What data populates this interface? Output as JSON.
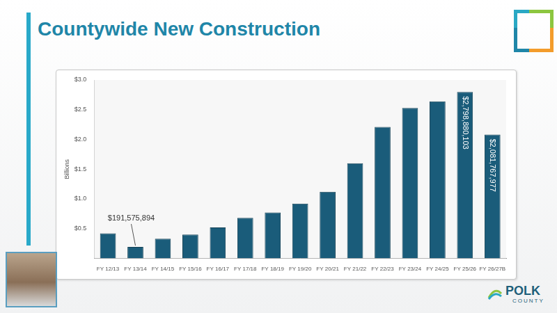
{
  "chart_data": {
    "type": "bar",
    "title": "Countywide New Construction",
    "y_label": "Billions",
    "categories": [
      "FY 12/13",
      "FY 13/14",
      "FY 14/15",
      "FY 15/16",
      "FY 16/17",
      "FY 17/18",
      "FY 18/19",
      "FY 19/20",
      "FY 20/21",
      "FY 21/22",
      "FY 22/23",
      "FY 23/24",
      "FY 24/25",
      "FY 25/26",
      "FY 26/27B"
    ],
    "values": [
      0.42,
      0.191575894,
      0.33,
      0.4,
      0.52,
      0.68,
      0.77,
      0.92,
      1.12,
      1.6,
      2.21,
      2.53,
      2.64,
      2.798880103,
      2.081767977
    ],
    "value_labels": [
      null,
      "$191,575,894",
      null,
      null,
      null,
      null,
      null,
      null,
      null,
      null,
      null,
      null,
      null,
      "$2,798,880,103",
      "$2,081,767,977"
    ],
    "data_labels": true,
    "color": "#1a5c7a",
    "ylim": [
      0,
      3
    ],
    "yticks": [
      {
        "value": 0.5,
        "label": "$0.5"
      },
      {
        "value": 1,
        "label": "$1.0"
      },
      {
        "value": 1.5,
        "label": "$1.5"
      },
      {
        "value": 2,
        "label": "$2.0"
      },
      {
        "value": 2.5,
        "label": "$2.5"
      },
      {
        "value": 3,
        "label": "$3.0"
      }
    ],
    "grid": false
  },
  "logo_text": "POLK COUNTY"
}
